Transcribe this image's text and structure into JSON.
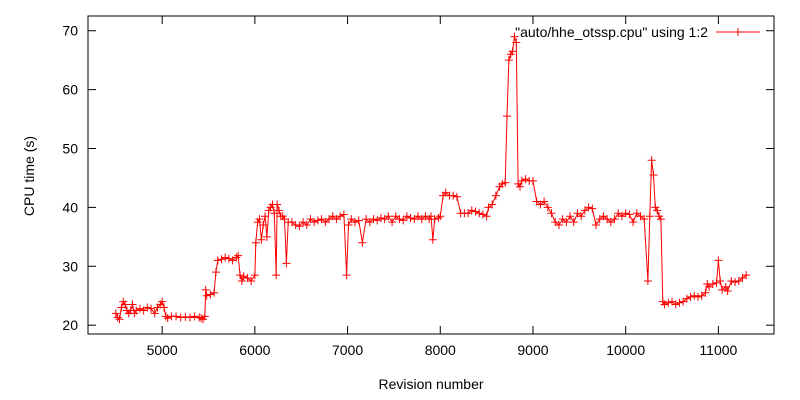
{
  "chart_data": {
    "type": "line",
    "title": "",
    "xlabel": "Revision number",
    "ylabel": "CPU time (s)",
    "xlim": [
      4200,
      11600
    ],
    "ylim": [
      18.5,
      72.5
    ],
    "x_ticks": [
      5000,
      6000,
      7000,
      8000,
      9000,
      10000,
      11000
    ],
    "y_ticks": [
      20,
      30,
      40,
      50,
      60,
      70
    ],
    "grid": false,
    "legend_position": "top-right",
    "series": [
      {
        "name": "\"auto/hhe_otssp.cpu\" using 1:2",
        "color": "#ff0000",
        "marker": "plus",
        "points": [
          [
            4500,
            22.0
          ],
          [
            4520,
            21.3
          ],
          [
            4540,
            21.0
          ],
          [
            4560,
            23.0
          ],
          [
            4580,
            24.0
          ],
          [
            4600,
            23.5
          ],
          [
            4620,
            22.5
          ],
          [
            4640,
            22.0
          ],
          [
            4660,
            22.5
          ],
          [
            4680,
            23.5
          ],
          [
            4700,
            22.0
          ],
          [
            4720,
            22.5
          ],
          [
            4760,
            22.8
          ],
          [
            4800,
            22.5
          ],
          [
            4840,
            23.0
          ],
          [
            4880,
            22.8
          ],
          [
            4920,
            22.0
          ],
          [
            4950,
            23.0
          ],
          [
            4980,
            23.5
          ],
          [
            5000,
            24.0
          ],
          [
            5020,
            23.0
          ],
          [
            5040,
            21.5
          ],
          [
            5060,
            21.2
          ],
          [
            5100,
            21.5
          ],
          [
            5150,
            21.5
          ],
          [
            5200,
            21.3
          ],
          [
            5250,
            21.4
          ],
          [
            5300,
            21.3
          ],
          [
            5350,
            21.5
          ],
          [
            5400,
            21.3
          ],
          [
            5420,
            21.2
          ],
          [
            5440,
            21.0
          ],
          [
            5460,
            21.5
          ],
          [
            5470,
            26.0
          ],
          [
            5480,
            25.0
          ],
          [
            5520,
            25.2
          ],
          [
            5560,
            25.5
          ],
          [
            5580,
            29.0
          ],
          [
            5600,
            31.0
          ],
          [
            5640,
            31.2
          ],
          [
            5680,
            31.5
          ],
          [
            5720,
            31.3
          ],
          [
            5760,
            31.0
          ],
          [
            5800,
            31.5
          ],
          [
            5820,
            31.8
          ],
          [
            5840,
            28.5
          ],
          [
            5860,
            27.5
          ],
          [
            5880,
            28.3
          ],
          [
            5920,
            28.0
          ],
          [
            5960,
            27.5
          ],
          [
            6000,
            28.5
          ],
          [
            6010,
            34.0
          ],
          [
            6030,
            37.5
          ],
          [
            6050,
            38.0
          ],
          [
            6070,
            34.5
          ],
          [
            6090,
            37.0
          ],
          [
            6110,
            38.5
          ],
          [
            6130,
            35.0
          ],
          [
            6150,
            39.5
          ],
          [
            6170,
            40.0
          ],
          [
            6190,
            40.5
          ],
          [
            6210,
            39.0
          ],
          [
            6230,
            28.5
          ],
          [
            6240,
            40.5
          ],
          [
            6260,
            39.5
          ],
          [
            6280,
            38.5
          ],
          [
            6300,
            38.5
          ],
          [
            6320,
            38.0
          ],
          [
            6340,
            30.5
          ],
          [
            6360,
            37.5
          ],
          [
            6400,
            37.5
          ],
          [
            6440,
            37.0
          ],
          [
            6480,
            36.8
          ],
          [
            6520,
            37.5
          ],
          [
            6560,
            37.0
          ],
          [
            6600,
            38.0
          ],
          [
            6640,
            37.5
          ],
          [
            6680,
            37.8
          ],
          [
            6720,
            38.0
          ],
          [
            6760,
            37.5
          ],
          [
            6800,
            38.0
          ],
          [
            6840,
            38.5
          ],
          [
            6880,
            38.0
          ],
          [
            6920,
            38.5
          ],
          [
            6960,
            38.8
          ],
          [
            6990,
            28.5
          ],
          [
            7010,
            37.0
          ],
          [
            7040,
            38.0
          ],
          [
            7080,
            37.5
          ],
          [
            7120,
            37.8
          ],
          [
            7160,
            34.0
          ],
          [
            7200,
            38.0
          ],
          [
            7240,
            37.5
          ],
          [
            7280,
            38.0
          ],
          [
            7320,
            37.8
          ],
          [
            7360,
            38.2
          ],
          [
            7400,
            38.0
          ],
          [
            7440,
            38.5
          ],
          [
            7480,
            37.5
          ],
          [
            7520,
            38.5
          ],
          [
            7560,
            38.0
          ],
          [
            7600,
            37.8
          ],
          [
            7640,
            38.5
          ],
          [
            7680,
            38.2
          ],
          [
            7720,
            38.0
          ],
          [
            7760,
            38.5
          ],
          [
            7800,
            38.0
          ],
          [
            7840,
            38.5
          ],
          [
            7880,
            38.0
          ],
          [
            7900,
            38.5
          ],
          [
            7920,
            34.5
          ],
          [
            7940,
            38.0
          ],
          [
            7980,
            38.2
          ],
          [
            8000,
            38.5
          ],
          [
            8030,
            42.0
          ],
          [
            8060,
            42.5
          ],
          [
            8100,
            42.0
          ],
          [
            8140,
            42.0
          ],
          [
            8180,
            41.8
          ],
          [
            8220,
            39.0
          ],
          [
            8260,
            39.0
          ],
          [
            8300,
            39.0
          ],
          [
            8340,
            39.5
          ],
          [
            8380,
            39.3
          ],
          [
            8420,
            39.0
          ],
          [
            8460,
            38.8
          ],
          [
            8500,
            38.5
          ],
          [
            8520,
            40.0
          ],
          [
            8560,
            40.5
          ],
          [
            8600,
            42.0
          ],
          [
            8640,
            43.5
          ],
          [
            8670,
            44.0
          ],
          [
            8700,
            44.2
          ],
          [
            8720,
            55.5
          ],
          [
            8740,
            65.0
          ],
          [
            8760,
            66.0
          ],
          [
            8780,
            66.5
          ],
          [
            8800,
            69.0
          ],
          [
            8820,
            68.0
          ],
          [
            8840,
            44.0
          ],
          [
            8860,
            43.5
          ],
          [
            8880,
            44.5
          ],
          [
            8920,
            44.8
          ],
          [
            8960,
            44.5
          ],
          [
            9000,
            44.5
          ],
          [
            9040,
            41.0
          ],
          [
            9080,
            40.5
          ],
          [
            9120,
            41.0
          ],
          [
            9160,
            40.0
          ],
          [
            9200,
            39.0
          ],
          [
            9240,
            37.5
          ],
          [
            9280,
            37.0
          ],
          [
            9320,
            38.0
          ],
          [
            9360,
            37.5
          ],
          [
            9400,
            38.5
          ],
          [
            9440,
            37.5
          ],
          [
            9480,
            39.0
          ],
          [
            9520,
            38.5
          ],
          [
            9560,
            39.5
          ],
          [
            9600,
            40.0
          ],
          [
            9640,
            39.8
          ],
          [
            9680,
            37.0
          ],
          [
            9720,
            38.0
          ],
          [
            9760,
            38.5
          ],
          [
            9800,
            38.0
          ],
          [
            9840,
            37.5
          ],
          [
            9880,
            38.0
          ],
          [
            9920,
            39.0
          ],
          [
            9960,
            38.5
          ],
          [
            10000,
            39.0
          ],
          [
            10040,
            38.8
          ],
          [
            10080,
            37.5
          ],
          [
            10120,
            39.0
          ],
          [
            10160,
            38.5
          ],
          [
            10200,
            38.0
          ],
          [
            10240,
            27.5
          ],
          [
            10260,
            38.5
          ],
          [
            10280,
            48.0
          ],
          [
            10300,
            45.5
          ],
          [
            10320,
            40.0
          ],
          [
            10340,
            39.5
          ],
          [
            10360,
            38.5
          ],
          [
            10380,
            38.0
          ],
          [
            10400,
            24.0
          ],
          [
            10420,
            23.5
          ],
          [
            10460,
            23.8
          ],
          [
            10500,
            24.0
          ],
          [
            10540,
            23.5
          ],
          [
            10580,
            23.8
          ],
          [
            10620,
            24.0
          ],
          [
            10660,
            24.5
          ],
          [
            10700,
            24.8
          ],
          [
            10740,
            25.0
          ],
          [
            10780,
            24.8
          ],
          [
            10820,
            25.0
          ],
          [
            10860,
            25.5
          ],
          [
            10880,
            27.0
          ],
          [
            10900,
            26.5
          ],
          [
            10940,
            27.0
          ],
          [
            10980,
            27.2
          ],
          [
            11000,
            31.0
          ],
          [
            11020,
            27.5
          ],
          [
            11040,
            26.0
          ],
          [
            11080,
            26.5
          ],
          [
            11100,
            25.8
          ],
          [
            11140,
            27.5
          ],
          [
            11180,
            27.3
          ],
          [
            11220,
            27.5
          ],
          [
            11260,
            28.0
          ],
          [
            11300,
            28.5
          ]
        ]
      }
    ]
  }
}
